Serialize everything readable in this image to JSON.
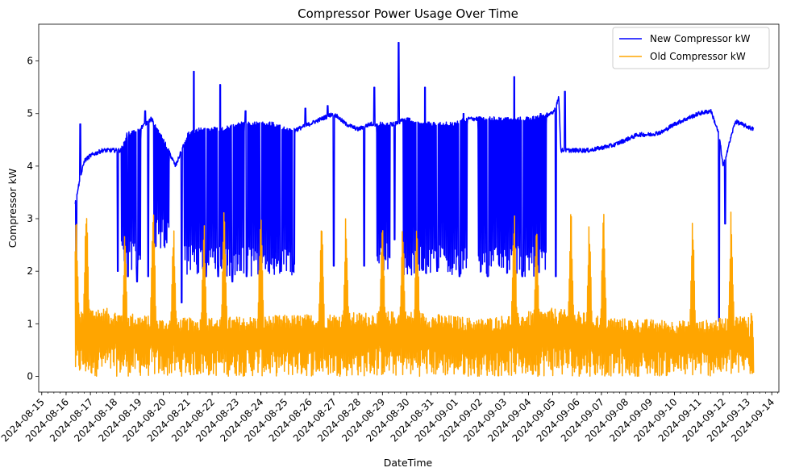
{
  "chart_data": {
    "type": "line",
    "title": "Compressor Power Usage Over Time",
    "xlabel": "DateTime",
    "ylabel": "Compressor kW",
    "x_range": [
      "2024-08-14T21:00",
      "2024-09-14T07:00"
    ],
    "ylim": [
      -0.3,
      6.7
    ],
    "y_ticks": [
      0,
      1,
      2,
      3,
      4,
      5,
      6
    ],
    "x_ticks": [
      "2024-08-15",
      "2024-08-16",
      "2024-08-17",
      "2024-08-18",
      "2024-08-19",
      "2024-08-20",
      "2024-08-21",
      "2024-08-22",
      "2024-08-23",
      "2024-08-24",
      "2024-08-25",
      "2024-08-26",
      "2024-08-27",
      "2024-08-28",
      "2024-08-29",
      "2024-08-30",
      "2024-08-31",
      "2024-09-01",
      "2024-09-02",
      "2024-09-03",
      "2024-09-04",
      "2024-09-05",
      "2024-09-06",
      "2024-09-07",
      "2024-09-08",
      "2024-09-09",
      "2024-09-10",
      "2024-09-11",
      "2024-09-12",
      "2024-09-13",
      "2024-09-14"
    ],
    "grid": false,
    "legend_position": "top-right",
    "series": [
      {
        "name": "New Compressor kW",
        "color": "#0000ff",
        "baseline": [
          [
            "2024-08-16T09:00",
            3.3
          ],
          [
            "2024-08-16T12:00",
            3.6
          ],
          [
            "2024-08-16T18:00",
            4.1
          ],
          [
            "2024-08-17T00:00",
            4.2
          ],
          [
            "2024-08-17T12:00",
            4.3
          ],
          [
            "2024-08-18T00:00",
            4.3
          ],
          [
            "2024-08-18T06:00",
            4.3
          ],
          [
            "2024-08-18T12:00",
            4.6
          ],
          [
            "2024-08-19T00:00",
            4.7
          ],
          [
            "2024-08-19T12:00",
            4.9
          ],
          [
            "2024-08-20T00:00",
            4.5
          ],
          [
            "2024-08-20T12:00",
            4.0
          ],
          [
            "2024-08-21T00:00",
            4.6
          ],
          [
            "2024-08-21T12:00",
            4.7
          ],
          [
            "2024-08-22T00:00",
            4.7
          ],
          [
            "2024-08-22T12:00",
            4.7
          ],
          [
            "2024-08-23T00:00",
            4.8
          ],
          [
            "2024-08-23T12:00",
            4.8
          ],
          [
            "2024-08-24T00:00",
            4.8
          ],
          [
            "2024-08-24T12:00",
            4.8
          ],
          [
            "2024-08-25T00:00",
            4.7
          ],
          [
            "2024-08-25T12:00",
            4.7
          ],
          [
            "2024-08-26T00:00",
            4.8
          ],
          [
            "2024-08-26T12:00",
            4.9
          ],
          [
            "2024-08-27T00:00",
            5.0
          ],
          [
            "2024-08-27T12:00",
            4.8
          ],
          [
            "2024-08-28T00:00",
            4.7
          ],
          [
            "2024-08-28T12:00",
            4.8
          ],
          [
            "2024-08-29T00:00",
            4.8
          ],
          [
            "2024-08-29T12:00",
            4.8
          ],
          [
            "2024-08-30T00:00",
            4.9
          ],
          [
            "2024-08-30T12:00",
            4.8
          ],
          [
            "2024-08-31T00:00",
            4.8
          ],
          [
            "2024-08-31T12:00",
            4.8
          ],
          [
            "2024-09-01T00:00",
            4.8
          ],
          [
            "2024-09-01T12:00",
            4.9
          ],
          [
            "2024-09-02T00:00",
            4.9
          ],
          [
            "2024-09-02T12:00",
            4.9
          ],
          [
            "2024-09-03T00:00",
            4.9
          ],
          [
            "2024-09-03T12:00",
            4.9
          ],
          [
            "2024-09-04T00:00",
            4.9
          ],
          [
            "2024-09-04T12:00",
            4.95
          ],
          [
            "2024-09-05T00:00",
            5.0
          ],
          [
            "2024-09-05T06:00",
            5.3
          ],
          [
            "2024-09-05T08:00",
            4.3
          ],
          [
            "2024-09-06T00:00",
            4.3
          ],
          [
            "2024-09-06T12:00",
            4.3
          ],
          [
            "2024-09-07T00:00",
            4.35
          ],
          [
            "2024-09-07T12:00",
            4.4
          ],
          [
            "2024-09-08T00:00",
            4.5
          ],
          [
            "2024-09-08T12:00",
            4.6
          ],
          [
            "2024-09-09T00:00",
            4.6
          ],
          [
            "2024-09-09T12:00",
            4.65
          ],
          [
            "2024-09-10T00:00",
            4.8
          ],
          [
            "2024-09-10T12:00",
            4.9
          ],
          [
            "2024-09-11T00:00",
            5.0
          ],
          [
            "2024-09-11T12:00",
            5.05
          ],
          [
            "2024-09-11T20:00",
            4.6
          ],
          [
            "2024-09-12T00:00",
            4.0
          ],
          [
            "2024-09-12T12:00",
            4.85
          ],
          [
            "2024-09-13T06:00",
            4.7
          ]
        ],
        "drops": [
          [
            "2024-08-16T10:00",
            2.0
          ],
          [
            "2024-08-18T03:00",
            2.0
          ],
          [
            "2024-08-18T13:00",
            1.9
          ],
          [
            "2024-08-18T22:00",
            1.8
          ],
          [
            "2024-08-19T09:00",
            1.9
          ],
          [
            "2024-08-20T18:00",
            1.4
          ],
          [
            "2024-08-21T18:00",
            1.9
          ],
          [
            "2024-08-22T06:00",
            1.9
          ],
          [
            "2024-08-22T20:00",
            1.8
          ],
          [
            "2024-08-23T10:00",
            1.9
          ],
          [
            "2024-08-24T00:00",
            2.0
          ],
          [
            "2024-08-24T20:00",
            2.0
          ],
          [
            "2024-08-25T08:00",
            2.0
          ],
          [
            "2024-08-27T00:00",
            2.1
          ],
          [
            "2024-08-28T06:00",
            2.1
          ],
          [
            "2024-08-29T12:00",
            2.6
          ],
          [
            "2024-08-30T10:00",
            2.0
          ],
          [
            "2024-08-31T06:00",
            2.0
          ],
          [
            "2024-09-01T04:00",
            1.9
          ],
          [
            "2024-09-02T08:00",
            1.9
          ],
          [
            "2024-09-03T18:00",
            1.9
          ],
          [
            "2024-09-05T03:00",
            1.9
          ],
          [
            "2024-09-11T20:00",
            1.05
          ],
          [
            "2024-09-12T02:00",
            2.9
          ]
        ],
        "spikes": [
          [
            "2024-08-16T14:00",
            4.8
          ],
          [
            "2024-08-19T06:00",
            5.05
          ],
          [
            "2024-08-21T06:00",
            5.8
          ],
          [
            "2024-08-22T08:00",
            5.55
          ],
          [
            "2024-08-23T09:00",
            5.05
          ],
          [
            "2024-08-25T20:00",
            5.1
          ],
          [
            "2024-08-26T18:00",
            5.15
          ],
          [
            "2024-08-28T16:00",
            5.5
          ],
          [
            "2024-08-29T16:00",
            6.35
          ],
          [
            "2024-08-30T18:00",
            5.5
          ],
          [
            "2024-09-01T08:00",
            5.0
          ],
          [
            "2024-09-03T10:00",
            5.7
          ],
          [
            "2024-09-04T12:00",
            5.0
          ],
          [
            "2024-09-05T12:00",
            5.42
          ]
        ],
        "oscillating_ranges": [
          [
            "2024-08-18T06:00",
            "2024-08-19T02:00",
            2.0
          ],
          [
            "2024-08-19T14:00",
            "2024-08-20T06:00",
            2.4
          ],
          [
            "2024-08-20T20:00",
            "2024-08-25T10:00",
            1.9
          ],
          [
            "2024-08-28T18:00",
            "2024-08-29T08:00",
            2.0
          ],
          [
            "2024-08-29T20:00",
            "2024-09-01T12:00",
            1.9
          ],
          [
            "2024-09-01T22:00",
            "2024-09-04T18:00",
            1.9
          ]
        ]
      },
      {
        "name": "Old Compressor kW",
        "color": "#ffa500",
        "base_envelope": [
          [
            "2024-08-16T09:00",
            1.2
          ],
          [
            "2024-08-17T00:00",
            1.35
          ],
          [
            "2024-08-20T00:00",
            1.1
          ],
          [
            "2024-08-24T00:00",
            1.15
          ],
          [
            "2024-08-27T00:00",
            1.2
          ],
          [
            "2024-08-30T00:00",
            1.25
          ],
          [
            "2024-09-02T00:00",
            1.1
          ],
          [
            "2024-09-05T00:00",
            1.3
          ],
          [
            "2024-09-08T00:00",
            1.1
          ],
          [
            "2024-09-11T00:00",
            1.05
          ],
          [
            "2024-09-13T06:00",
            1.2
          ]
        ],
        "min_value": 0.0,
        "peaks": [
          [
            "2024-08-16T10:00",
            3.3
          ],
          [
            "2024-08-16T20:00",
            3.6
          ],
          [
            "2024-08-18T10:00",
            2.9
          ],
          [
            "2024-08-19T14:00",
            3.55
          ],
          [
            "2024-08-20T10:00",
            3.1
          ],
          [
            "2024-08-21T16:00",
            3.2
          ],
          [
            "2024-08-22T12:00",
            3.4
          ],
          [
            "2024-08-24T00:00",
            3.4
          ],
          [
            "2024-08-26T12:00",
            3.35
          ],
          [
            "2024-08-27T12:00",
            3.3
          ],
          [
            "2024-08-29T00:00",
            3.2
          ],
          [
            "2024-08-29T20:00",
            3.15
          ],
          [
            "2024-08-30T10:00",
            3.2
          ],
          [
            "2024-09-03T10:00",
            3.35
          ],
          [
            "2024-09-04T08:00",
            3.0
          ],
          [
            "2024-09-05T18:00",
            3.45
          ],
          [
            "2024-09-06T12:00",
            3.15
          ],
          [
            "2024-09-07T02:00",
            3.4
          ],
          [
            "2024-09-10T18:00",
            3.25
          ],
          [
            "2024-09-12T08:00",
            3.4
          ],
          [
            "2024-09-13T04:00",
            1.4
          ]
        ]
      }
    ]
  }
}
